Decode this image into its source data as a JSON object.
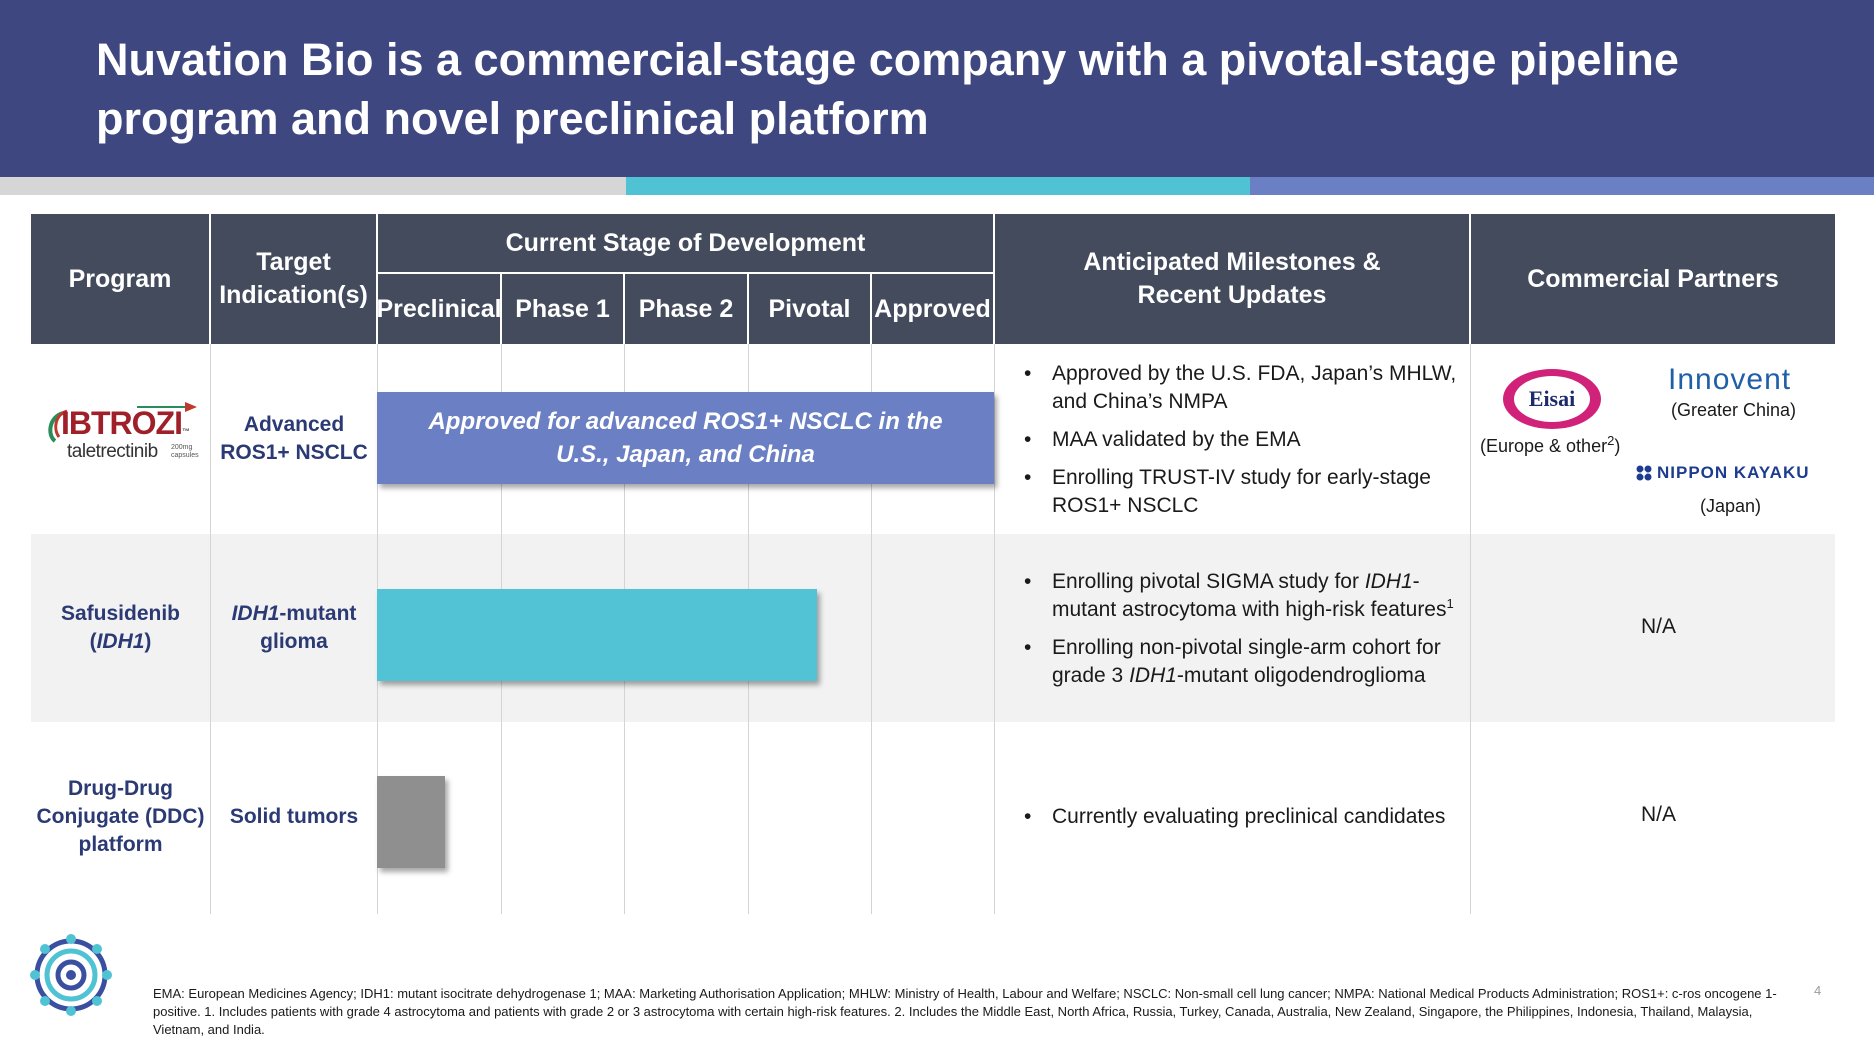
{
  "title": "Nuvation Bio is a commercial-stage company with a pivotal-stage pipeline program and novel preclinical platform",
  "table": {
    "headers": {
      "program": "Program",
      "target_line1": "Target",
      "target_line2": "Indication(s)",
      "stage": "Current Stage of Development",
      "stages": [
        "Preclinical",
        "Phase 1",
        "Phase 2",
        "Pivotal",
        "Approved"
      ],
      "milestones_line1": "Anticipated Milestones &",
      "milestones_line2": "Recent Updates",
      "partners": "Commercial Partners"
    },
    "rows": [
      {
        "program_logo": {
          "brand": "IBTROZI",
          "tm": "™",
          "generic": "taletrectinib",
          "dose_line1": "200mg",
          "dose_line2": "capsules"
        },
        "indication_line1": "Advanced",
        "indication_line2": "ROS1+ NSCLC",
        "bar_label_line1": "Approved for advanced ROS1+ NSCLC in the",
        "bar_label_line2": "U.S., Japan, and China",
        "bar_stage": "Approved",
        "bar_color": "#6b7fc4",
        "milestones": [
          "Approved by the U.S. FDA, Japan’s MHLW, and China’s NMPA",
          "MAA validated by the EMA",
          "Enrolling TRUST-IV study for early-stage ROS1+ NSCLC"
        ],
        "partners": {
          "eisai_logo": "Eisai",
          "eisai_region_prefix": "(Europe & other",
          "eisai_region_sup": "2",
          "eisai_region_suffix": ")",
          "innovent_logo": "Innovent",
          "innovent_region": "(Greater China)",
          "nippon_logo": "NIPPON KAYAKU",
          "nippon_region": "(Japan)"
        }
      },
      {
        "program_line1": "Safusidenib",
        "program_line2_open": "(",
        "program_line2_italic": "IDH1",
        "program_line2_close": ")",
        "indication_italic": "IDH1",
        "indication_rest": "-mutant",
        "indication_line2": "glioma",
        "bar_stage": "Pivotal",
        "bar_color": "#52c3d4",
        "milestones": [
          {
            "pre": "Enrolling pivotal SIGMA study for ",
            "italic": "IDH1",
            "post": "-mutant astrocytoma with high-risk features",
            "sup": "1"
          },
          {
            "pre": "Enrolling non-pivotal single-arm cohort for grade 3 ",
            "italic": "IDH1",
            "post": "-mutant oligodendroglioma",
            "sup": ""
          }
        ],
        "partners": "N/A"
      },
      {
        "program_line1": "Drug-Drug",
        "program_line2": "Conjugate (DDC)",
        "program_line3": "platform",
        "indication": "Solid tumors",
        "bar_stage": "Preclinical",
        "bar_color": "#8f8f8f",
        "milestones": [
          "Currently evaluating preclinical candidates"
        ],
        "partners": "N/A"
      }
    ]
  },
  "footnote": "EMA: European Medicines Agency; IDH1: mutant isocitrate dehydrogenase 1; MAA: Marketing Authorisation Application; MHLW: Ministry of Health, Labour and Welfare; NSCLC: Non-small cell lung cancer; NMPA: National Medical Products Administration; ROS1+: c-ros oncogene 1-positive. 1. Includes patients with grade 4 astrocytoma and patients with grade 2 or 3 astrocytoma with certain high-risk features. 2. Includes the Middle East, North Africa, Russia, Turkey, Canada, Australia, New Zealand, Singapore, the Philippines, Indonesia, Thailand, Malaysia, Vietnam, and India.",
  "page_number": "4",
  "colors": {
    "header_bg": "#3e4780",
    "table_header_bg": "#434b5d",
    "stripe_gray": "#d6d6d6",
    "stripe_teal": "#4fc3d3",
    "stripe_blue": "#6b7fc4",
    "label_navy": "#2b3a74",
    "row_alt_bg": "#f2f2f2"
  }
}
